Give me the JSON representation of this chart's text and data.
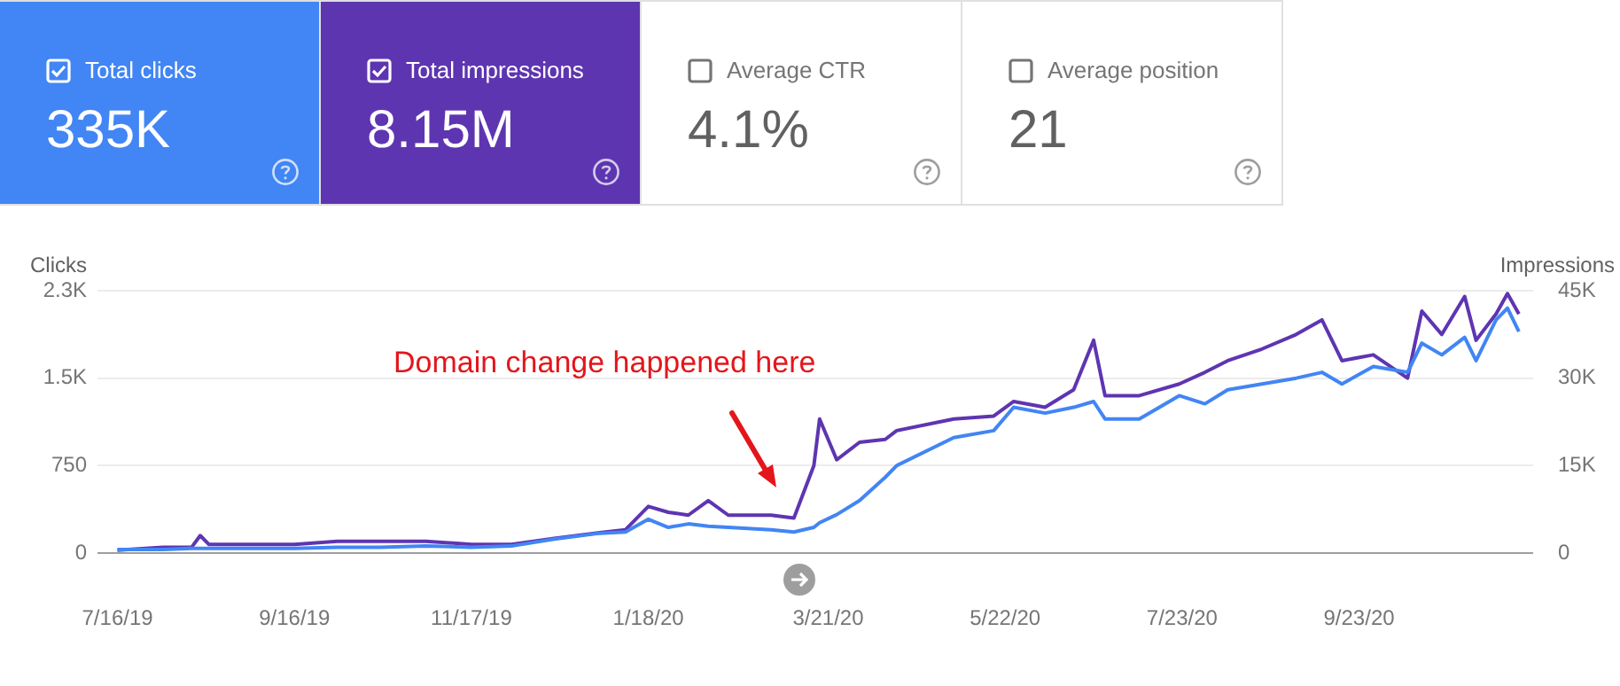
{
  "chart_data": {
    "type": "line",
    "ylabel": "Clicks",
    "y2label": "Impressions",
    "legend": "top left",
    "grid": "y",
    "marker": "none",
    "line_style": "solid",
    "xlim": [
      "2019-07-09",
      "2020-11-23"
    ],
    "xticks": [
      {
        "value": "2019-07-16",
        "label": "7/16/19"
      },
      {
        "value": "2019-09-16",
        "label": "9/16/19"
      },
      {
        "value": "2019-11-17",
        "label": "11/17/19"
      },
      {
        "value": "2020-01-18",
        "label": "1/18/20"
      },
      {
        "value": "2020-03-21",
        "label": "3/21/20"
      },
      {
        "value": "2020-05-22",
        "label": "5/22/20"
      },
      {
        "value": "2020-07-23",
        "label": "7/23/20"
      },
      {
        "value": "2020-09-23",
        "label": "9/23/20"
      }
    ],
    "ylim": [
      0,
      2250
    ],
    "yticks": [
      0,
      750,
      {
        "value": 1500,
        "label": "1.5K"
      },
      {
        "value": 2250,
        "label": "2.3K"
      }
    ],
    "y2lim": [
      0,
      45000
    ],
    "y2ticks": [
      0,
      {
        "value": 15000,
        "label": "15K"
      },
      {
        "value": 30000,
        "label": "30K"
      },
      {
        "value": 45000,
        "label": "45K"
      }
    ],
    "x": [
      "2019-07-16",
      "2019-08-01",
      "2019-08-11",
      "2019-08-14",
      "2019-08-17",
      "2019-09-01",
      "2019-09-16",
      "2019-10-01",
      "2019-10-16",
      "2019-11-01",
      "2019-11-17",
      "2019-12-01",
      "2019-12-16",
      "2020-01-01",
      "2020-01-10",
      "2020-01-18",
      "2020-01-25",
      "2020-02-01",
      "2020-02-08",
      "2020-02-15",
      "2020-03-01",
      "2020-03-09",
      "2020-03-16",
      "2020-03-18",
      "2020-03-24",
      "2020-04-01",
      "2020-04-10",
      "2020-04-14",
      "2020-05-04",
      "2020-05-18",
      "2020-05-25",
      "2020-06-05",
      "2020-06-15",
      "2020-06-22",
      "2020-06-26",
      "2020-07-08",
      "2020-07-22",
      "2020-07-31",
      "2020-08-08",
      "2020-08-20",
      "2020-09-01",
      "2020-09-10",
      "2020-09-17",
      "2020-09-28",
      "2020-10-10",
      "2020-10-15",
      "2020-10-22",
      "2020-10-30",
      "2020-11-03",
      "2020-11-10",
      "2020-11-14",
      "2020-11-18"
    ],
    "series": [
      {
        "name": "Total clicks",
        "color": "#4285f4",
        "values": [
          30,
          30,
          40,
          40,
          40,
          40,
          40,
          50,
          50,
          60,
          50,
          60,
          120,
          170,
          180,
          290,
          220,
          250,
          230,
          220,
          200,
          180,
          220,
          260,
          330,
          450,
          650,
          750,
          990,
          1050,
          1250,
          1200,
          1250,
          1300,
          1150,
          1150,
          1350,
          1280,
          1400,
          1450,
          1500,
          1550,
          1450,
          1600,
          1550,
          1800,
          1700,
          1850,
          1650,
          2000,
          2100,
          1900
        ]
      },
      {
        "name": "Total impressions",
        "color": "#5e35b1",
        "axis": "y2",
        "values": [
          500,
          1000,
          1000,
          3000,
          1500,
          1500,
          1500,
          2000,
          2000,
          2000,
          1500,
          1500,
          2500,
          3500,
          4000,
          8000,
          7000,
          6500,
          9000,
          6500,
          6500,
          6000,
          15000,
          23000,
          16000,
          19000,
          19500,
          21000,
          23000,
          23500,
          26000,
          25000,
          28000,
          36500,
          27000,
          27000,
          29000,
          31000,
          33000,
          35000,
          37500,
          40000,
          33000,
          34000,
          30000,
          41500,
          37500,
          44000,
          36500,
          41000,
          44500,
          41000
        ]
      }
    ],
    "annotations": [
      "335K",
      "8.15M",
      "Average CTR",
      "4.1%",
      "Average position",
      "21",
      "Domain change happened here"
    ]
  }
}
